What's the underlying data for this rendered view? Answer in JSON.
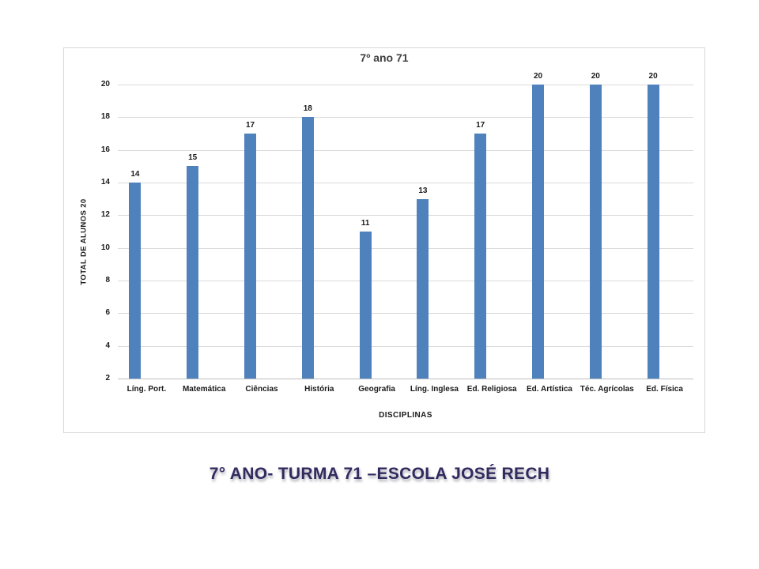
{
  "chart_data": {
    "type": "bar",
    "title": "7º ano 71",
    "categories": [
      "Líng. Port.",
      "Matemática",
      "Ciências",
      "História",
      "Geografia",
      "Líng. Inglesa",
      "Ed. Religiosa",
      "Ed. Artística",
      "Téc. Agrícolas",
      "Ed. Física"
    ],
    "values": [
      14,
      15,
      17,
      18,
      11,
      13,
      17,
      20,
      20,
      20
    ],
    "xlabel": "DISCIPLINAS",
    "ylabel": "TOTAL DE ALUNOS 20",
    "ylim": [
      2,
      20
    ],
    "yticks": [
      2,
      4,
      6,
      8,
      10,
      12,
      14,
      16,
      18,
      20
    ],
    "grid": true,
    "data_labels": true,
    "legend_position": "none"
  },
  "colors": {
    "bar_fill": "#4f81bd",
    "gridline": "#dadada",
    "axis_line": "#bfbfbf",
    "frame_border": "#d9d9d9",
    "chart_text": "#1a1a1a",
    "title_text": "#3f3f3f",
    "caption_text": "#312a5e"
  },
  "caption": {
    "text": "7° ANO- TURMA 71 –ESCOLA JOSÉ RECH"
  }
}
